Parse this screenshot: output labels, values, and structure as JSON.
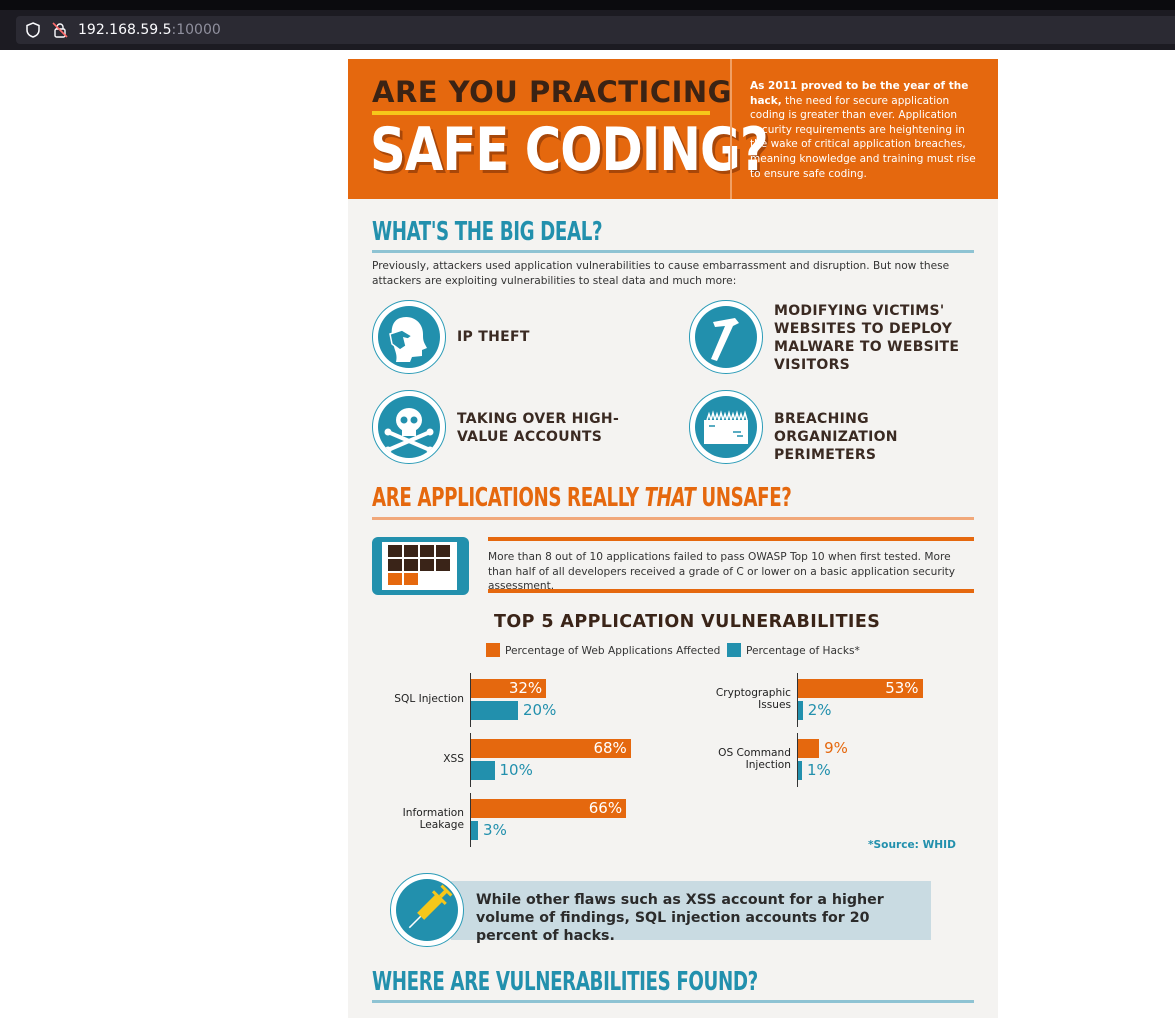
{
  "browser": {
    "url_host": "192.168.59.5",
    "url_port": ":10000",
    "icons": [
      "shield-icon",
      "lock-warning-icon"
    ]
  },
  "header": {
    "line1": "ARE YOU PRACTICING",
    "line2": "SAFE CODING?",
    "intro_bold": "As 2011 proved to be the year of the hack,",
    "intro_rest": "the need for secure application coding is greater than ever. Application security requirements are heightening in the wake of critical application breaches, meaning knowledge and training must rise to ensure safe coding."
  },
  "big_deal": {
    "title": "WHAT'S THE BIG DEAL?",
    "text": "Previously, attackers used application vulnerabilities to cause embarrassment and disruption. But now these attackers are exploiting vulnerabilities to steal data and much more:",
    "threats": [
      {
        "label": "IP THEFT",
        "icon": "head-hand-icon"
      },
      {
        "label": "MODIFYING VICTIMS' WEBSITES TO DEPLOY MALWARE TO WEBSITE VISITORS",
        "icon": "hammer-icon"
      },
      {
        "label": "TAKING OVER HIGH-VALUE ACCOUNTS",
        "icon": "skull-crossbones-icon"
      },
      {
        "label": "BREACHING ORGANIZATION PERIMETERS",
        "icon": "brick-wall-icon"
      }
    ]
  },
  "unsafe": {
    "title_before": "ARE APPLICATIONS REALLY ",
    "title_emph": "THAT",
    "title_after": " UNSAFE?",
    "text": "More than 8 out of 10 applications failed to pass OWASP Top 10 when first tested. More than half of all developers received a grade of C or lower on a basic application security assessment."
  },
  "chart_data": {
    "type": "bar",
    "title": "TOP 5 APPLICATION VULNERABILITIES",
    "categories": [
      "SQL Injection",
      "XSS",
      "Information Leakage",
      "Cryptographic Issues",
      "OS Command Injection"
    ],
    "series": [
      {
        "name": "Percentage of Web Applications Affected",
        "values": [
          32,
          68,
          66,
          53,
          9
        ],
        "color": "#e5680e"
      },
      {
        "name": "Percentage of Hacks*",
        "values": [
          20,
          10,
          3,
          2,
          1
        ],
        "color": "#2290ad"
      }
    ],
    "value_suffix": "%",
    "source": "*Source: WHID"
  },
  "callout": {
    "text": "While other flaws such as XSS account for a higher volume of findings, SQL injection accounts for 20 percent of hacks.",
    "icon": "syringe-icon"
  },
  "found": {
    "title": "WHERE ARE VULNERABILITIES FOUND?"
  },
  "colors": {
    "orange": "#e5680e",
    "teal": "#2290ad",
    "brown": "#3b2314",
    "yellow": "#f6c71a"
  }
}
